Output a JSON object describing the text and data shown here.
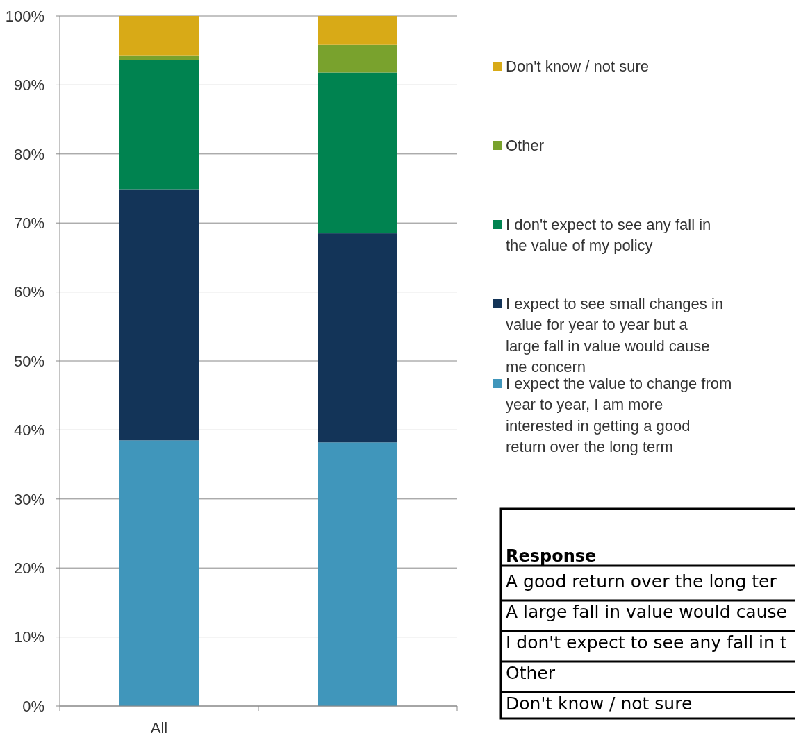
{
  "chart_data": {
    "type": "bar",
    "stacked": true,
    "categories": [
      "All",
      null
    ],
    "ylim": [
      0,
      100
    ],
    "yticks": [
      {
        "value": 0,
        "label": "0%"
      },
      {
        "value": 10,
        "label": "10%"
      },
      {
        "value": 20,
        "label": "20%"
      },
      {
        "value": 30,
        "label": "30%"
      },
      {
        "value": 40,
        "label": "40%"
      },
      {
        "value": 50,
        "label": "50%"
      },
      {
        "value": 60,
        "label": "60%"
      },
      {
        "value": 70,
        "label": "70%"
      },
      {
        "value": 80,
        "label": "80%"
      },
      {
        "value": 90,
        "label": "90%"
      },
      {
        "value": 100,
        "label": "100%"
      }
    ],
    "grid": "y",
    "legend": "right",
    "series": [
      {
        "name": "I expect the value to change from year to year, I am more interested in getting a good return over the long term",
        "color": "#4096bb",
        "values": [
          38.5,
          38.2
        ]
      },
      {
        "name": "I expect to see small changes in value for year to year but a large fall in value would cause me concern",
        "color": "#133458",
        "values": [
          36.4,
          30.3
        ]
      },
      {
        "name": "I don't expect to see any fall in the value of my policy",
        "color": "#008350",
        "values": [
          18.7,
          23.3
        ]
      },
      {
        "name": "Other",
        "color": "#79a22d",
        "values": [
          0.7,
          4.0
        ]
      },
      {
        "name": "Don't know / not sure",
        "color": "#d8aa17",
        "values": [
          5.7,
          4.2
        ]
      }
    ],
    "annotations": [
      "Response",
      "A good return over the long ter",
      "A large fall in value would cause",
      "I don't expect to see any fall in t",
      "Other",
      "Don't know / not sure"
    ]
  }
}
